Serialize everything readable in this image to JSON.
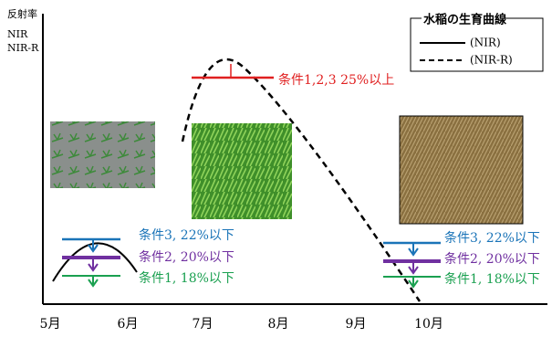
{
  "y_axis": {
    "labels": [
      "反射率",
      "NIR",
      "NIR-R"
    ]
  },
  "legend": {
    "title": "水稲の生育曲線",
    "items": [
      "(NIR)",
      "(NIR-R)"
    ]
  },
  "annotation": "条件1,2,3 25%以上",
  "conditions_left": [
    "条件3, 22%以下",
    "条件2, 20%以下",
    "条件1, 18%以下"
  ],
  "conditions_right": [
    "条件3, 22%以下",
    "条件2, 20%以下",
    "条件1, 18%以下"
  ],
  "months": [
    "5月",
    "6月",
    "7月",
    "8月",
    "9月",
    "10月"
  ]
}
